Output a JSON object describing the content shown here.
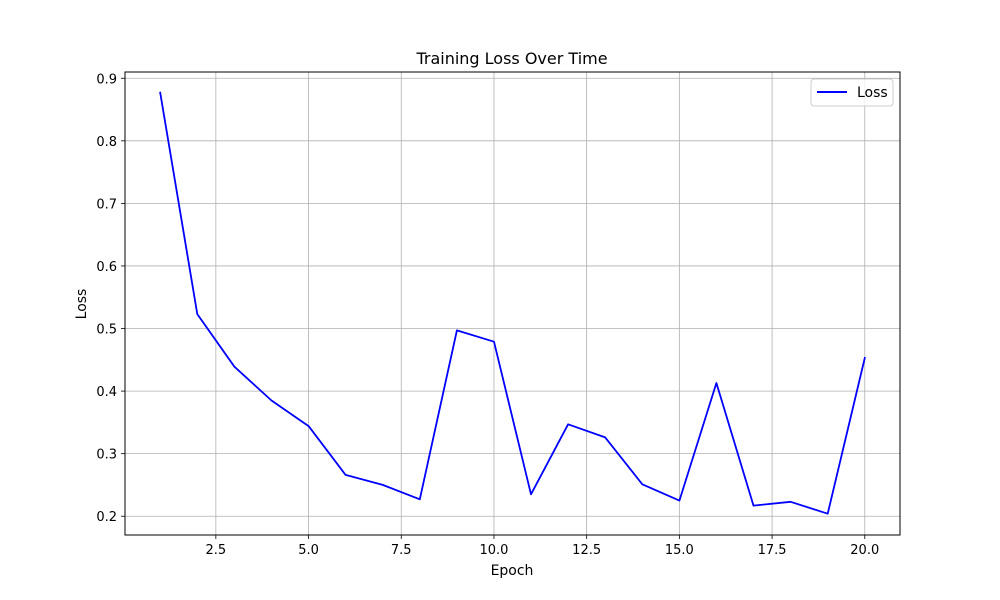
{
  "chart_data": {
    "type": "line",
    "title": "Training Loss Over Time",
    "xlabel": "Epoch",
    "ylabel": "Loss",
    "xlim": [
      0.05,
      20.95
    ],
    "ylim": [
      0.17,
      0.91
    ],
    "xticks": [
      2.5,
      5.0,
      7.5,
      10.0,
      12.5,
      15.0,
      17.5,
      20.0
    ],
    "xtick_labels": [
      "2.5",
      "5.0",
      "7.5",
      "10.0",
      "12.5",
      "15.0",
      "17.5",
      "20.0"
    ],
    "yticks": [
      0.2,
      0.3,
      0.4,
      0.5,
      0.6,
      0.7,
      0.8,
      0.9
    ],
    "ytick_labels": [
      "0.2",
      "0.3",
      "0.4",
      "0.5",
      "0.6",
      "0.7",
      "0.8",
      "0.9"
    ],
    "grid": true,
    "legend": {
      "position": "top-right",
      "entries": [
        "Loss"
      ]
    },
    "series": [
      {
        "name": "Loss",
        "color": "#0000ff",
        "x": [
          1,
          2,
          3,
          4,
          5,
          6,
          7,
          8,
          9,
          10,
          11,
          12,
          13,
          14,
          15,
          16,
          17,
          18,
          19,
          20
        ],
        "y": [
          0.877,
          0.523,
          0.439,
          0.385,
          0.344,
          0.266,
          0.25,
          0.227,
          0.497,
          0.479,
          0.235,
          0.347,
          0.326,
          0.251,
          0.225,
          0.413,
          0.217,
          0.223,
          0.204,
          0.453
        ]
      }
    ]
  }
}
